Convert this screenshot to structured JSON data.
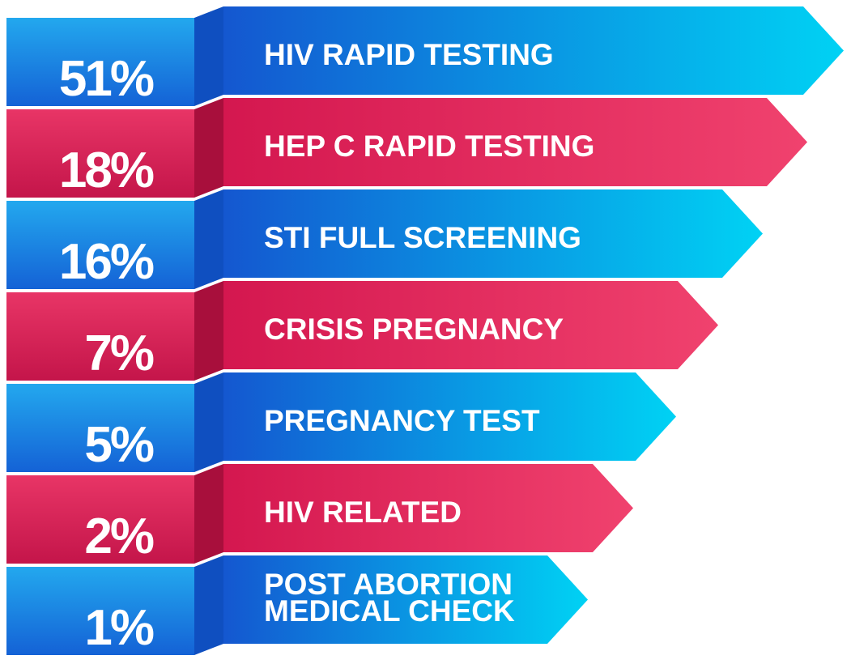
{
  "items": [
    {
      "value": "51%",
      "lines": [
        "HIV RAPID TESTING"
      ]
    },
    {
      "value": "18%",
      "lines": [
        "HEP C RAPID TESTING"
      ]
    },
    {
      "value": "16%",
      "lines": [
        "STI FULL SCREENING"
      ]
    },
    {
      "value": "7%",
      "lines": [
        "CRISIS PREGNANCY"
      ]
    },
    {
      "value": "5%",
      "lines": [
        "PREGNANCY TEST"
      ]
    },
    {
      "value": "2%",
      "lines": [
        "HIV RELATED"
      ]
    },
    {
      "value": "1%",
      "lines": [
        "POST ABORTION",
        "MEDICAL CHECK"
      ]
    }
  ]
}
